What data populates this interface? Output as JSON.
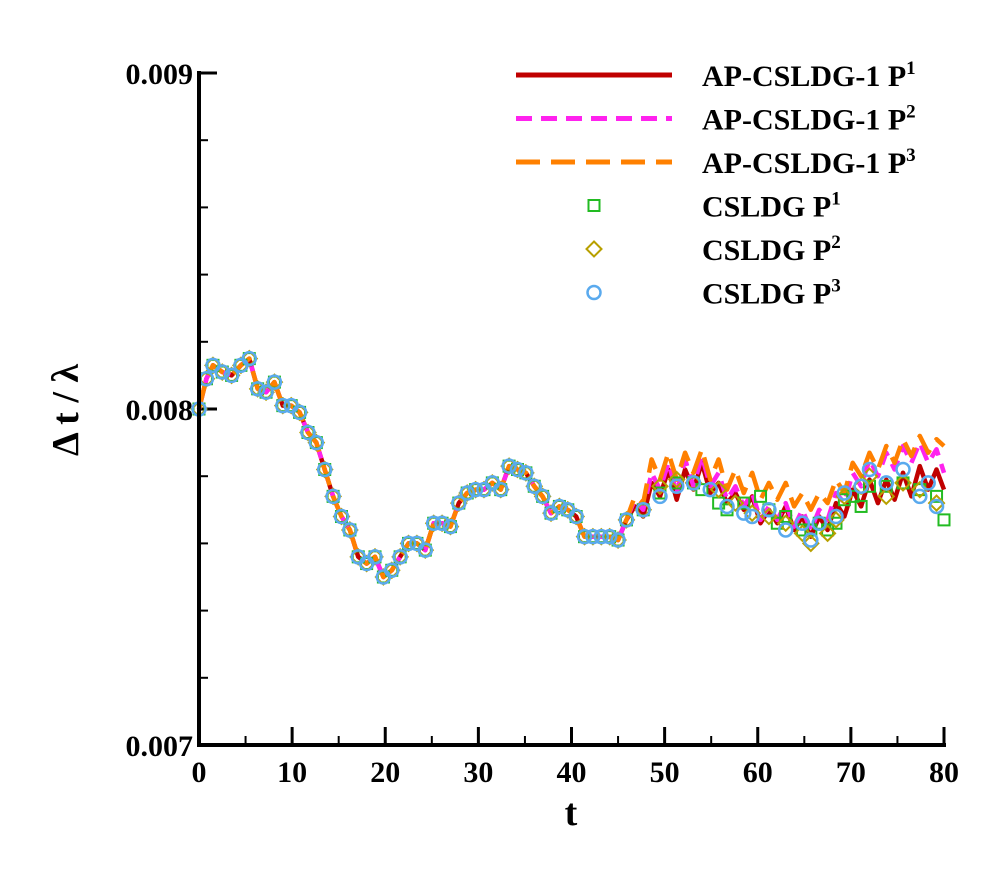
{
  "chart_data": {
    "type": "line",
    "title": "",
    "xlabel": "t",
    "ylabel": "Δ t / λ",
    "xlim": [
      0,
      80
    ],
    "ylim": [
      0.007,
      0.009
    ],
    "x_ticks": [
      0,
      10,
      20,
      30,
      40,
      50,
      60,
      70,
      80
    ],
    "y_ticks": [
      0.007,
      0.008,
      0.009
    ],
    "x_tick_labels": [
      "0",
      "10",
      "20",
      "30",
      "40",
      "50",
      "60",
      "70",
      "80"
    ],
    "y_tick_labels": [
      "0.007",
      "0.008",
      "0.009"
    ],
    "x_minor_step": 5,
    "y_minor_step": 0.0002,
    "legend_position": "top-right",
    "common_early": {
      "x": [
        0,
        0.8,
        1.5,
        2.5,
        3.5,
        4.5,
        5.4,
        6.3,
        7.2,
        8.1,
        9.0,
        9.9,
        10.8,
        11.7,
        12.6,
        13.5,
        14.4,
        15.3,
        16.2,
        17.1,
        18.0,
        18.9,
        19.8,
        20.7,
        21.6,
        22.5,
        23.4,
        24.3,
        25.2,
        26.1,
        27.0,
        27.9,
        28.8,
        29.7,
        30.6,
        31.5,
        32.4,
        33.3,
        34.2,
        35.1,
        36.0,
        36.9,
        37.8,
        38.7,
        39.6,
        40.5,
        41.4,
        42.3,
        43.2,
        44.1,
        45.0,
        45.9
      ],
      "y": [
        0.008,
        0.00809,
        0.00813,
        0.00811,
        0.0081,
        0.00813,
        0.00815,
        0.00806,
        0.00805,
        0.00808,
        0.00801,
        0.00801,
        0.00799,
        0.00793,
        0.0079,
        0.00782,
        0.00774,
        0.00768,
        0.00764,
        0.00756,
        0.00754,
        0.00756,
        0.0075,
        0.00752,
        0.00756,
        0.0076,
        0.0076,
        0.00758,
        0.00766,
        0.00766,
        0.00765,
        0.00772,
        0.00775,
        0.00776,
        0.00776,
        0.00778,
        0.00776,
        0.00783,
        0.00782,
        0.00781,
        0.00777,
        0.00774,
        0.00769,
        0.00771,
        0.0077,
        0.00768,
        0.00762,
        0.00762,
        0.00762,
        0.00762,
        0.00761,
        0.00767
      ]
    },
    "series": [
      {
        "name": "AP-CSLDG-1 P",
        "sup": "1",
        "style": "solid",
        "color": "#c00000",
        "late": {
          "x": [
            46.8,
            47.7,
            48.6,
            49.5,
            50.4,
            51.3,
            52.2,
            53.1,
            54.0,
            54.9,
            55.8,
            56.7,
            57.6,
            58.5,
            59.4,
            60.3,
            61.2,
            62.1,
            63.0,
            63.9,
            64.8,
            65.7,
            66.6,
            67.5,
            68.4,
            69.3,
            70.2,
            71.1,
            72.0,
            72.9,
            73.8,
            74.7,
            75.6,
            76.5,
            77.4,
            78.3,
            79.2,
            80.0
          ],
          "y": [
            0.00771,
            0.00768,
            0.00778,
            0.00774,
            0.00782,
            0.00773,
            0.00782,
            0.00776,
            0.00784,
            0.00775,
            0.00778,
            0.00772,
            0.00775,
            0.0077,
            0.00774,
            0.00766,
            0.0077,
            0.00766,
            0.00771,
            0.00764,
            0.00768,
            0.00762,
            0.00768,
            0.00764,
            0.00772,
            0.00768,
            0.00776,
            0.00771,
            0.00779,
            0.00772,
            0.00779,
            0.00773,
            0.00781,
            0.00774,
            0.00783,
            0.00776,
            0.00782,
            0.00776
          ]
        }
      },
      {
        "name": "AP-CSLDG-1 P",
        "sup": "2",
        "style": "dash",
        "color": "#ff22ee",
        "late": {
          "x": [
            46.8,
            47.7,
            48.6,
            49.5,
            50.4,
            51.3,
            52.2,
            53.1,
            54.0,
            54.9,
            55.8,
            56.7,
            57.6,
            58.5,
            59.4,
            60.3,
            61.2,
            62.1,
            63.0,
            63.9,
            64.8,
            65.7,
            66.6,
            67.5,
            68.4,
            69.3,
            70.2,
            71.1,
            72.0,
            72.9,
            73.8,
            74.7,
            75.6,
            76.5,
            77.4,
            78.3,
            79.2,
            80.0
          ],
          "y": [
            0.00773,
            0.0077,
            0.00781,
            0.00776,
            0.00784,
            0.00775,
            0.00785,
            0.00777,
            0.00786,
            0.00777,
            0.00781,
            0.00773,
            0.00777,
            0.00771,
            0.00775,
            0.00767,
            0.00771,
            0.00767,
            0.00772,
            0.00765,
            0.0077,
            0.00764,
            0.0077,
            0.00767,
            0.00775,
            0.00772,
            0.00781,
            0.00777,
            0.00785,
            0.0078,
            0.00787,
            0.00782,
            0.00789,
            0.00784,
            0.0079,
            0.00784,
            0.00788,
            0.00781
          ]
        }
      },
      {
        "name": "AP-CSLDG-1 P",
        "sup": "3",
        "style": "longdash",
        "color": "#ff8000",
        "late": {
          "x": [
            46.8,
            47.7,
            48.6,
            49.5,
            50.4,
            51.3,
            52.2,
            53.1,
            54.0,
            54.9,
            55.8,
            56.7,
            57.6,
            58.5,
            59.4,
            60.3,
            61.2,
            62.1,
            63.0,
            63.9,
            64.8,
            65.7,
            66.6,
            67.5,
            68.4,
            69.3,
            70.2,
            71.1,
            72.0,
            72.9,
            73.8,
            74.7,
            75.6,
            76.5,
            77.4,
            78.3,
            79.2,
            80.0
          ],
          "y": [
            0.00774,
            0.00772,
            0.00785,
            0.00779,
            0.00787,
            0.00779,
            0.00787,
            0.00781,
            0.00788,
            0.00779,
            0.00785,
            0.00776,
            0.00782,
            0.00775,
            0.00781,
            0.00773,
            0.00778,
            0.00773,
            0.00778,
            0.00771,
            0.00775,
            0.0077,
            0.00775,
            0.00772,
            0.00779,
            0.00775,
            0.00784,
            0.0078,
            0.00787,
            0.00782,
            0.00789,
            0.00784,
            0.00791,
            0.00786,
            0.00792,
            0.00787,
            0.00791,
            0.00789
          ]
        }
      },
      {
        "name": "CSLDG P",
        "sup": "1",
        "style": "square",
        "color": "#22bb22",
        "late": {
          "x": [
            47.7,
            49.5,
            51.3,
            53.1,
            54.0,
            55.8,
            56.7,
            58.5,
            60.3,
            61.2,
            62.1,
            63.0,
            64.8,
            65.7,
            66.6,
            67.5,
            68.4,
            69.3,
            70.2,
            71.1,
            72.0,
            73.8,
            75.6,
            77.4,
            79.2,
            80.0
          ],
          "y": [
            0.0077,
            0.00775,
            0.00778,
            0.00778,
            0.00776,
            0.00772,
            0.0077,
            0.00772,
            0.00774,
            0.0077,
            0.00766,
            0.00768,
            0.00764,
            0.00764,
            0.00766,
            0.00764,
            0.00766,
            0.00773,
            0.00774,
            0.00771,
            0.00777,
            0.00777,
            0.00778,
            0.00776,
            0.00774,
            0.00767
          ]
        }
      },
      {
        "name": "CSLDG P",
        "sup": "2",
        "style": "diamond",
        "color": "#b8a000",
        "late": {
          "x": [
            47.7,
            49.5,
            51.3,
            53.1,
            55.8,
            57.6,
            59.4,
            61.2,
            63.0,
            64.8,
            65.7,
            67.5,
            68.4,
            69.3,
            71.1,
            72.0,
            73.8,
            75.6,
            77.4,
            79.2
          ],
          "y": [
            0.0077,
            0.00777,
            0.00779,
            0.00778,
            0.00776,
            0.00772,
            0.00769,
            0.00768,
            0.00766,
            0.00763,
            0.0076,
            0.00763,
            0.00767,
            0.00774,
            0.00777,
            0.0078,
            0.00774,
            0.00778,
            0.00776,
            0.00772
          ]
        }
      },
      {
        "name": "CSLDG P",
        "sup": "3",
        "style": "circle",
        "color": "#5aaaee",
        "late": {
          "x": [
            47.7,
            49.5,
            51.3,
            53.1,
            54.9,
            56.7,
            58.5,
            59.4,
            61.2,
            63.0,
            64.8,
            65.7,
            66.6,
            68.4,
            69.3,
            71.1,
            72.0,
            73.8,
            75.6,
            77.4,
            78.3,
            79.2
          ],
          "y": [
            0.0077,
            0.00774,
            0.00777,
            0.00778,
            0.00776,
            0.00771,
            0.00769,
            0.00768,
            0.0077,
            0.00764,
            0.00766,
            0.00761,
            0.00766,
            0.00768,
            0.00775,
            0.00777,
            0.00782,
            0.00778,
            0.00782,
            0.00774,
            0.00778,
            0.00771
          ]
        }
      }
    ]
  }
}
